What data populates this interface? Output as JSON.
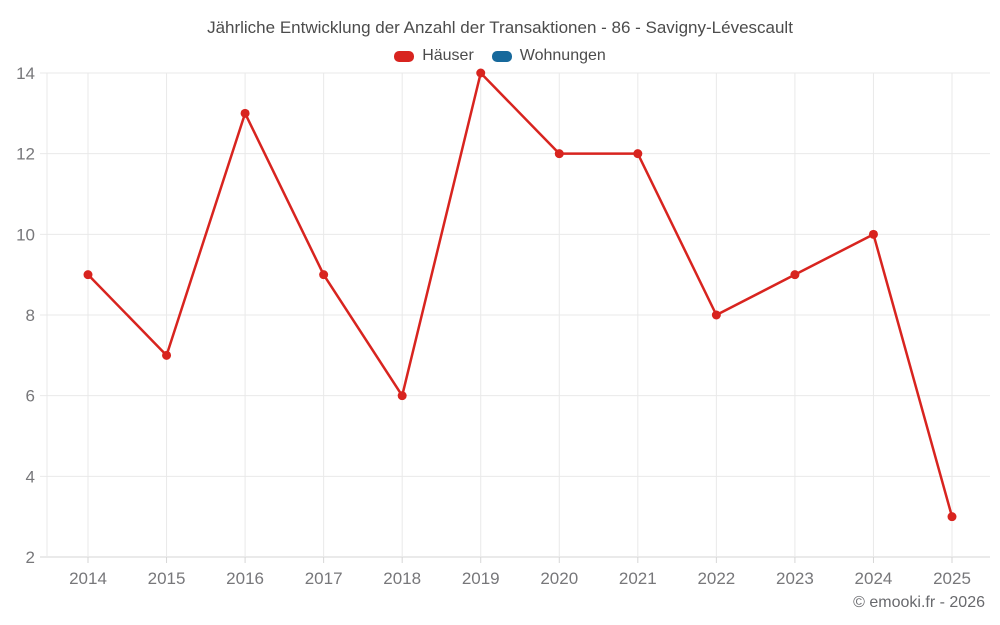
{
  "header": {
    "title": "Jährliche Entwicklung der Anzahl der Transaktionen - 86 - Savigny-Lévescault"
  },
  "legend": {
    "items": [
      {
        "label": "Häuser",
        "color": "#d8241f"
      },
      {
        "label": "Wohnungen",
        "color": "#17699c"
      }
    ]
  },
  "footer": {
    "credit": "© emooki.fr - 2026"
  },
  "chart_data": {
    "type": "line",
    "title": "Jährliche Entwicklung der Anzahl der Transaktionen - 86 - Savigny-Lévescault",
    "x": [
      2014,
      2015,
      2016,
      2017,
      2018,
      2019,
      2020,
      2021,
      2022,
      2023,
      2024,
      2025
    ],
    "series": [
      {
        "name": "Häuser",
        "color": "#d8241f",
        "values": [
          9,
          7,
          13,
          9,
          6,
          14,
          12,
          12,
          8,
          9,
          10,
          3
        ]
      },
      {
        "name": "Wohnungen",
        "color": "#17699c",
        "values": []
      }
    ],
    "xlabel": "",
    "ylabel": "",
    "ylim": [
      2,
      14
    ],
    "ytick_step": 2,
    "grid": true,
    "legend_position": "top",
    "marker": "circle",
    "colors": {
      "gridline": "#e9e9e9",
      "axis_line": "#d6d6d6",
      "tick_label": "#77777a",
      "title_text": "#4c4c4c",
      "credit_text": "#68696d"
    }
  }
}
